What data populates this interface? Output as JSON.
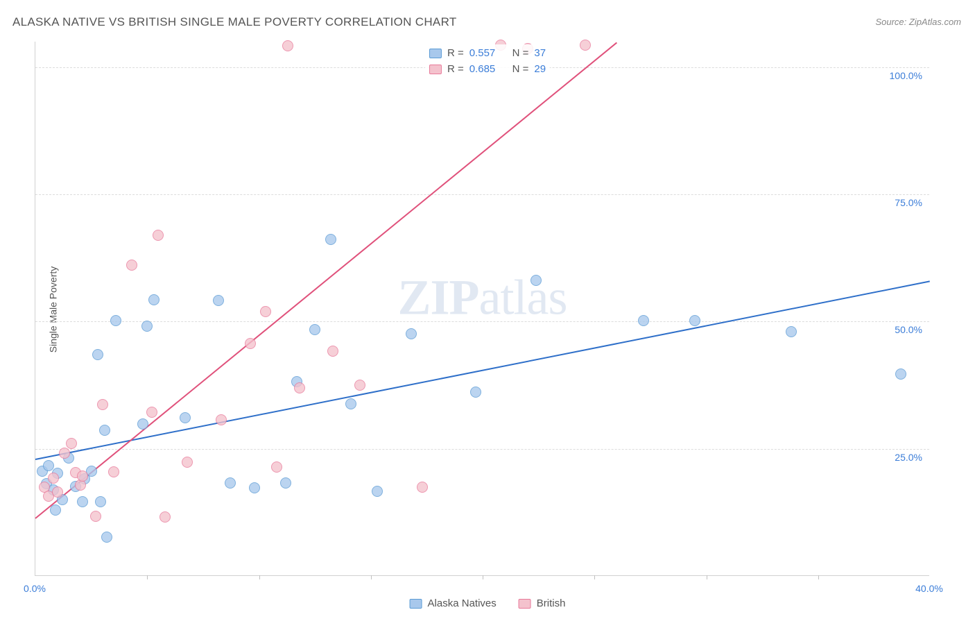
{
  "title": "ALASKA NATIVE VS BRITISH SINGLE MALE POVERTY CORRELATION CHART",
  "source": "Source: ZipAtlas.com",
  "ylabel": "Single Male Poverty",
  "watermark_part1": "ZIP",
  "watermark_part2": "atlas",
  "chart": {
    "type": "scatter",
    "xlim": [
      0,
      40
    ],
    "ylim": [
      0,
      105
    ],
    "xtick_labels": [
      "0.0%",
      "40.0%"
    ],
    "xtick_positions": [
      0,
      40
    ],
    "xminor_ticks": [
      5,
      10,
      15,
      20,
      25,
      30,
      35
    ],
    "ytick_labels": [
      "25.0%",
      "50.0%",
      "75.0%",
      "100.0%"
    ],
    "ytick_positions": [
      25,
      50,
      75,
      100
    ],
    "grid_color": "#dcdcdc",
    "background_color": "#ffffff",
    "point_radius": 8,
    "series": [
      {
        "name": "Alaska Natives",
        "fill_color": "#a8c8ec",
        "stroke_color": "#5b9bd5",
        "r_label": "R =",
        "r_value": "0.557",
        "n_label": "N =",
        "n_value": "37",
        "trend": {
          "x1": 0,
          "y1": 23,
          "x2": 40,
          "y2": 58,
          "color": "#2e6fc9"
        },
        "points": [
          [
            0.3,
            20.5
          ],
          [
            0.5,
            18
          ],
          [
            0.6,
            21.5
          ],
          [
            0.8,
            16.8
          ],
          [
            1.0,
            20
          ],
          [
            1.2,
            14.8
          ],
          [
            1.5,
            23
          ],
          [
            1.8,
            17.4
          ],
          [
            2.1,
            14.4
          ],
          [
            2.2,
            18.9
          ],
          [
            2.5,
            20.5
          ],
          [
            2.9,
            14.5
          ],
          [
            2.8,
            43.3
          ],
          [
            3.6,
            50
          ],
          [
            3.2,
            7.5
          ],
          [
            5.0,
            49
          ],
          [
            5.3,
            54.2
          ],
          [
            6.7,
            31
          ],
          [
            8.2,
            54
          ],
          [
            8.7,
            18.2
          ],
          [
            9.8,
            17.2
          ],
          [
            11.2,
            18.1
          ],
          [
            11.7,
            38
          ],
          [
            12.5,
            48.3
          ],
          [
            13.2,
            66
          ],
          [
            14.1,
            33.7
          ],
          [
            15.3,
            16.5
          ],
          [
            16.8,
            47.5
          ],
          [
            19.7,
            36
          ],
          [
            22.4,
            58
          ],
          [
            27.2,
            50
          ],
          [
            29.5,
            50
          ],
          [
            33.8,
            47.8
          ],
          [
            38.7,
            39.5
          ],
          [
            3.1,
            28.5
          ],
          [
            4.8,
            29.7
          ],
          [
            0.9,
            12.8
          ]
        ]
      },
      {
        "name": "British",
        "fill_color": "#f4c2cd",
        "stroke_color": "#e87a9a",
        "r_label": "R =",
        "r_value": "0.685",
        "n_label": "N =",
        "n_value": "29",
        "trend": {
          "x1": 0,
          "y1": 11.5,
          "x2": 26,
          "y2": 105,
          "color": "#e0517b"
        },
        "points": [
          [
            0.4,
            17.3
          ],
          [
            0.6,
            15.6
          ],
          [
            0.8,
            19.1
          ],
          [
            1.0,
            16.3
          ],
          [
            1.3,
            24
          ],
          [
            1.6,
            25.9
          ],
          [
            1.8,
            20.2
          ],
          [
            2.0,
            17.7
          ],
          [
            2.1,
            19.5
          ],
          [
            2.7,
            11.6
          ],
          [
            3.0,
            33.5
          ],
          [
            3.5,
            20.3
          ],
          [
            4.3,
            61
          ],
          [
            5.2,
            32
          ],
          [
            5.5,
            66.8
          ],
          [
            5.8,
            11.5
          ],
          [
            6.8,
            22.2
          ],
          [
            8.3,
            30.5
          ],
          [
            9.6,
            45.5
          ],
          [
            10.3,
            51.8
          ],
          [
            10.8,
            21.3
          ],
          [
            11.3,
            104
          ],
          [
            11.8,
            36.8
          ],
          [
            13.3,
            44
          ],
          [
            14.5,
            37.4
          ],
          [
            17.3,
            17.3
          ],
          [
            20.8,
            104.2
          ],
          [
            22.0,
            103.5
          ],
          [
            24.6,
            104.2
          ]
        ]
      }
    ]
  },
  "legend": {
    "items": [
      {
        "label": "Alaska Natives",
        "fill": "#a8c8ec",
        "stroke": "#5b9bd5"
      },
      {
        "label": "British",
        "fill": "#f4c2cd",
        "stroke": "#e87a9a"
      }
    ]
  }
}
